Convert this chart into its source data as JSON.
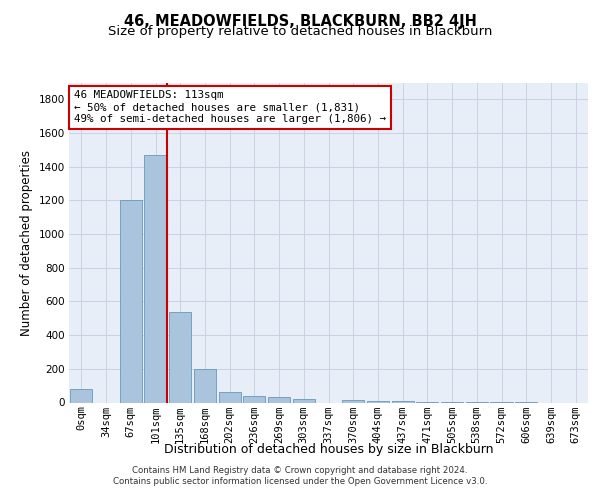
{
  "title1": "46, MEADOWFIELDS, BLACKBURN, BB2 4JH",
  "title2": "Size of property relative to detached houses in Blackburn",
  "xlabel": "Distribution of detached houses by size in Blackburn",
  "ylabel": "Number of detached properties",
  "footnote1": "Contains HM Land Registry data © Crown copyright and database right 2024.",
  "footnote2": "Contains public sector information licensed under the Open Government Licence v3.0.",
  "bin_labels": [
    "0sqm",
    "34sqm",
    "67sqm",
    "101sqm",
    "135sqm",
    "168sqm",
    "202sqm",
    "236sqm",
    "269sqm",
    "303sqm",
    "337sqm",
    "370sqm",
    "404sqm",
    "437sqm",
    "471sqm",
    "505sqm",
    "538sqm",
    "572sqm",
    "606sqm",
    "639sqm",
    "673sqm"
  ],
  "bar_values": [
    80,
    0,
    1200,
    1470,
    540,
    200,
    65,
    40,
    30,
    20,
    0,
    12,
    10,
    10,
    5,
    3,
    2,
    1,
    1,
    0,
    0
  ],
  "bar_color": "#aac4de",
  "bar_edge_color": "#6699bb",
  "grid_color": "#c8d4e4",
  "background_color": "#e8eef8",
  "red_line_bin": 3,
  "red_line_color": "#cc0000",
  "annotation_text": "46 MEADOWFIELDS: 113sqm\n← 50% of detached houses are smaller (1,831)\n49% of semi-detached houses are larger (1,806) →",
  "annotation_box_color": "#ffffff",
  "annotation_box_edge": "#cc0000",
  "ylim": [
    0,
    1900
  ],
  "yticks": [
    0,
    200,
    400,
    600,
    800,
    1000,
    1200,
    1400,
    1600,
    1800
  ],
  "title1_fontsize": 10.5,
  "title2_fontsize": 9.5,
  "xlabel_fontsize": 9,
  "ylabel_fontsize": 8.5,
  "tick_fontsize": 7.5,
  "annot_fontsize": 7.8,
  "footnote_fontsize": 6.2
}
